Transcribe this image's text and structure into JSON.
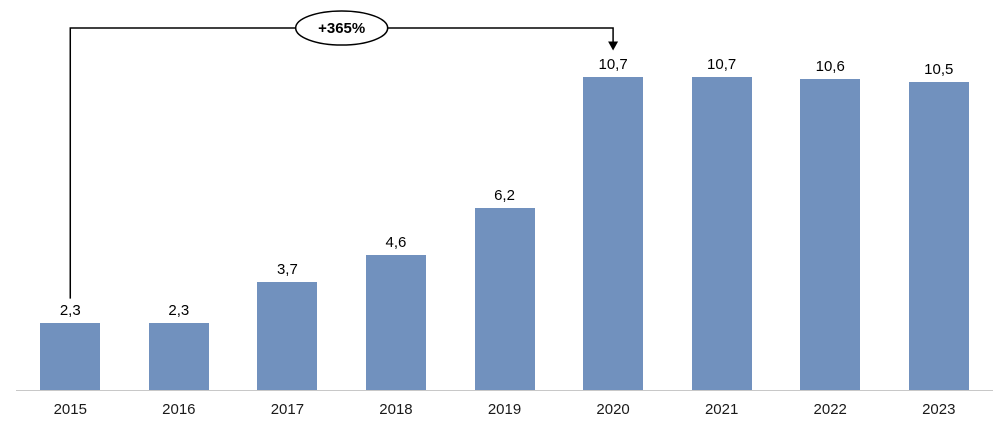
{
  "chart_data": {
    "type": "bar",
    "categories": [
      "2015",
      "2016",
      "2017",
      "2018",
      "2019",
      "2020",
      "2021",
      "2022",
      "2023"
    ],
    "values": [
      2.3,
      2.3,
      3.7,
      4.6,
      6.2,
      10.7,
      10.7,
      10.6,
      10.5
    ],
    "value_labels": [
      "2,3",
      "2,3",
      "3,7",
      "4,6",
      "6,2",
      "10,7",
      "10,7",
      "10,6",
      "10,5"
    ],
    "title": "",
    "xlabel": "",
    "ylabel": "",
    "ylim": [
      0,
      12
    ],
    "grid": false,
    "legend": false,
    "decimal_separator": ",",
    "colors": {
      "bar": "#7191BE",
      "axis_line": "#C8C8C8",
      "annotation_line": "#000000",
      "annotation_fill": "#FFFFFF",
      "text": "#000000"
    },
    "annotation": {
      "label": "+365%",
      "from_category": "2015",
      "to_category": "2020",
      "shape": "ellipse-on-bracket-arrow"
    }
  }
}
